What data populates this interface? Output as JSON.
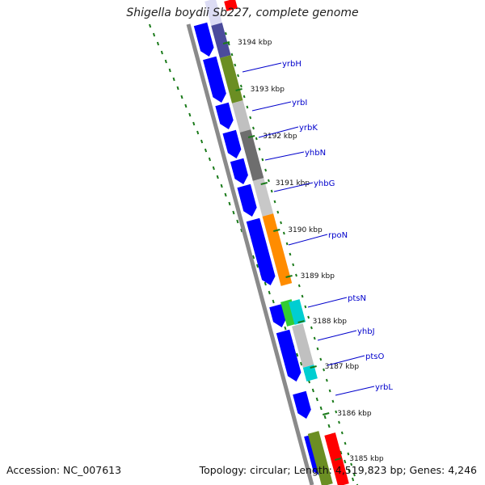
{
  "title": "Shigella boydii Sb227, complete genome",
  "accession_label": "Accession: NC_007613",
  "summary_label": "Topology: circular; Length: 4,519,823 bp; Genes: 4,246",
  "colors": {
    "cds_forward": "#0000ff",
    "backbone": "#808080",
    "tick": "#1a7a1a",
    "label_line": "#0000cc"
  },
  "ticks": [
    "3194 kbp",
    "3193 kbp",
    "3192 kbp",
    "3191 kbp",
    "3190 kbp",
    "3189 kbp",
    "3188 kbp",
    "3187 kbp",
    "3186 kbp",
    "3185 kbp"
  ],
  "gene_labels": [
    "yrbH",
    "yrbI",
    "yrbK",
    "yhbN",
    "yhbG",
    "rpoN",
    "ptsN",
    "yhbJ",
    "ptsO",
    "yrbL"
  ],
  "cog_colors": [
    "#dcdcf4",
    "#ff0000",
    "#4b4b9c",
    "#6b8e23",
    "#c0c0c0",
    "#6e6e6e",
    "#c8c8c8",
    "#ff8c00",
    "#32cd32",
    "#00ced1",
    "#c0c0c0",
    "#00ced1",
    "#6b8e23",
    "#ff0000"
  ]
}
